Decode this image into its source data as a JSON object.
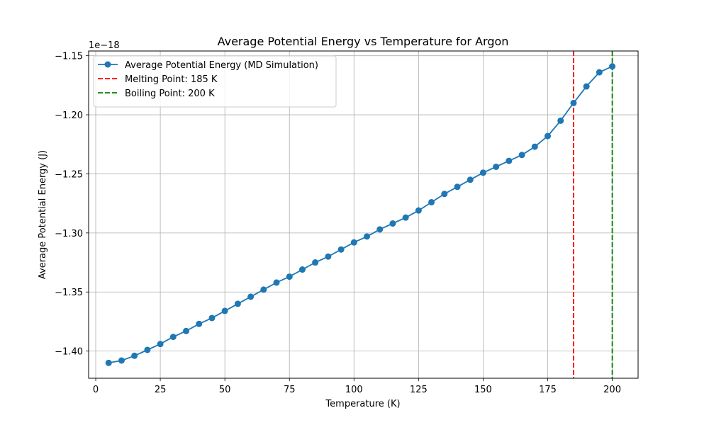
{
  "chart_data": {
    "type": "line",
    "title": "Average Potential Energy vs Temperature for Argon",
    "xlabel": "Temperature (K)",
    "ylabel": "Average Potential Energy (J)",
    "offset_label": "1e−18",
    "xlim": [
      -2.75,
      210
    ],
    "ylim": [
      -1.423,
      -1.146
    ],
    "x_ticks": [
      0,
      25,
      50,
      75,
      100,
      125,
      150,
      175,
      200
    ],
    "x_tick_labels": [
      "0",
      "25",
      "50",
      "75",
      "100",
      "125",
      "150",
      "175",
      "200"
    ],
    "y_ticks": [
      -1.4,
      -1.35,
      -1.3,
      -1.25,
      -1.2,
      -1.15
    ],
    "y_tick_labels": [
      "−1.40",
      "−1.35",
      "−1.30",
      "−1.25",
      "−1.20",
      "−1.15"
    ],
    "grid": true,
    "legend_position": "top-left",
    "series": [
      {
        "name": "Average Potential Energy (MD Simulation)",
        "color": "#1f77b4",
        "x": [
          5,
          10,
          15,
          20,
          25,
          30,
          35,
          40,
          45,
          50,
          55,
          60,
          65,
          70,
          75,
          80,
          85,
          90,
          95,
          100,
          105,
          110,
          115,
          120,
          125,
          130,
          135,
          140,
          145,
          150,
          155,
          160,
          165,
          170,
          175,
          180,
          185,
          190,
          195,
          200
        ],
        "y": [
          -1.41,
          -1.408,
          -1.404,
          -1.399,
          -1.394,
          -1.388,
          -1.383,
          -1.377,
          -1.372,
          -1.366,
          -1.36,
          -1.354,
          -1.348,
          -1.342,
          -1.337,
          -1.331,
          -1.325,
          -1.32,
          -1.314,
          -1.308,
          -1.303,
          -1.297,
          -1.292,
          -1.287,
          -1.281,
          -1.274,
          -1.267,
          -1.261,
          -1.255,
          -1.249,
          -1.244,
          -1.239,
          -1.234,
          -1.227,
          -1.218,
          -1.205,
          -1.19,
          -1.176,
          -1.164,
          -1.159
        ]
      }
    ],
    "vlines": [
      {
        "name": "Melting Point: 185 K",
        "x": 185,
        "color": "#ff0000"
      },
      {
        "name": "Boiling Point: 200 K",
        "x": 200,
        "color": "#008000"
      }
    ]
  }
}
